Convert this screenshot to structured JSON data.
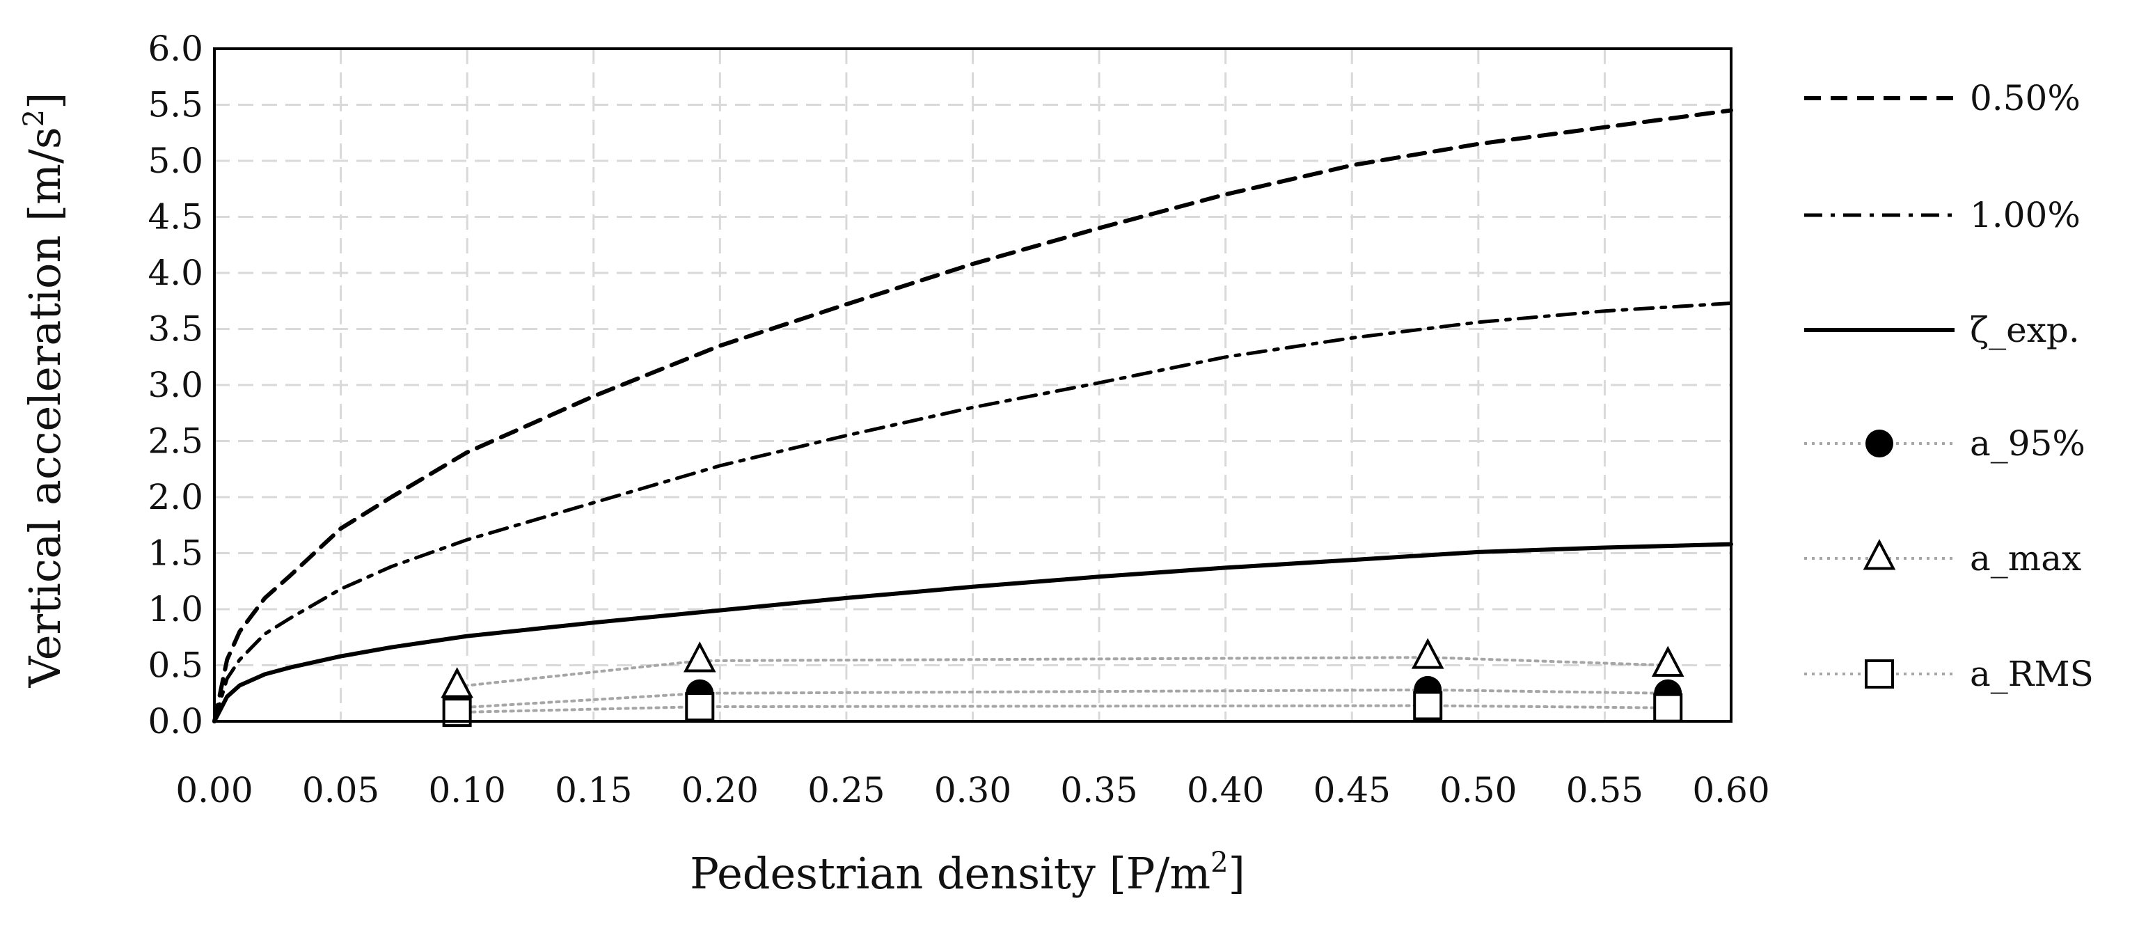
{
  "chart_data": {
    "type": "line",
    "title": "",
    "xlabel": "Pedestrian density [P/m",
    "xlabel_sup": "2",
    "xlabel_end": "]",
    "ylabel": "Vertical acceleration [m/s",
    "ylabel_sup": "2",
    "ylabel_end": "]",
    "xlim": [
      0,
      0.6
    ],
    "ylim": [
      0,
      6.0
    ],
    "x_ticks": [
      "0.00",
      "0.05",
      "0.10",
      "0.15",
      "0.20",
      "0.25",
      "0.30",
      "0.35",
      "0.40",
      "0.45",
      "0.50",
      "0.55",
      "0.60"
    ],
    "y_ticks": [
      "0.0",
      "0.5",
      "1.0",
      "1.5",
      "2.0",
      "2.5",
      "3.0",
      "3.5",
      "4.0",
      "4.5",
      "5.0",
      "5.5",
      "6.0"
    ],
    "grid": true,
    "legend_position": "right",
    "series": [
      {
        "name": "0.50%",
        "style": "dashed",
        "x": [
          0,
          0.005,
          0.01,
          0.02,
          0.03,
          0.05,
          0.07,
          0.1,
          0.15,
          0.2,
          0.25,
          0.3,
          0.35,
          0.4,
          0.45,
          0.5,
          0.55,
          0.6
        ],
        "y": [
          0,
          0.55,
          0.8,
          1.1,
          1.3,
          1.72,
          2.0,
          2.4,
          2.9,
          3.35,
          3.72,
          4.08,
          4.4,
          4.7,
          4.96,
          5.15,
          5.3,
          5.45
        ]
      },
      {
        "name": "1.00%",
        "style": "dash-dot",
        "x": [
          0,
          0.005,
          0.01,
          0.02,
          0.03,
          0.05,
          0.07,
          0.1,
          0.15,
          0.2,
          0.25,
          0.3,
          0.35,
          0.4,
          0.45,
          0.5,
          0.55,
          0.6
        ],
        "y": [
          0,
          0.38,
          0.55,
          0.78,
          0.92,
          1.18,
          1.38,
          1.62,
          1.95,
          2.28,
          2.55,
          2.8,
          3.02,
          3.25,
          3.42,
          3.56,
          3.66,
          3.73
        ]
      },
      {
        "name": "ζ_exp.",
        "style": "solid",
        "x": [
          0,
          0.005,
          0.01,
          0.02,
          0.03,
          0.05,
          0.07,
          0.1,
          0.15,
          0.2,
          0.25,
          0.3,
          0.35,
          0.4,
          0.45,
          0.5,
          0.55,
          0.6
        ],
        "y": [
          0,
          0.22,
          0.32,
          0.42,
          0.48,
          0.58,
          0.66,
          0.76,
          0.88,
          0.99,
          1.1,
          1.2,
          1.29,
          1.37,
          1.44,
          1.51,
          1.55,
          1.58
        ]
      },
      {
        "name": "a_95%",
        "style": "dotted-marker",
        "marker": "circle",
        "x": [
          0.096,
          0.192,
          0.48,
          0.575
        ],
        "y": [
          0.12,
          0.25,
          0.28,
          0.25
        ]
      },
      {
        "name": "a_max",
        "style": "dotted-marker",
        "marker": "triangle",
        "x": [
          0.096,
          0.192,
          0.48,
          0.575
        ],
        "y": [
          0.31,
          0.54,
          0.57,
          0.5
        ]
      },
      {
        "name": "a_RMS",
        "style": "dotted-marker",
        "marker": "square",
        "x": [
          0.096,
          0.192,
          0.48,
          0.575
        ],
        "y": [
          0.08,
          0.13,
          0.14,
          0.12
        ]
      }
    ]
  }
}
